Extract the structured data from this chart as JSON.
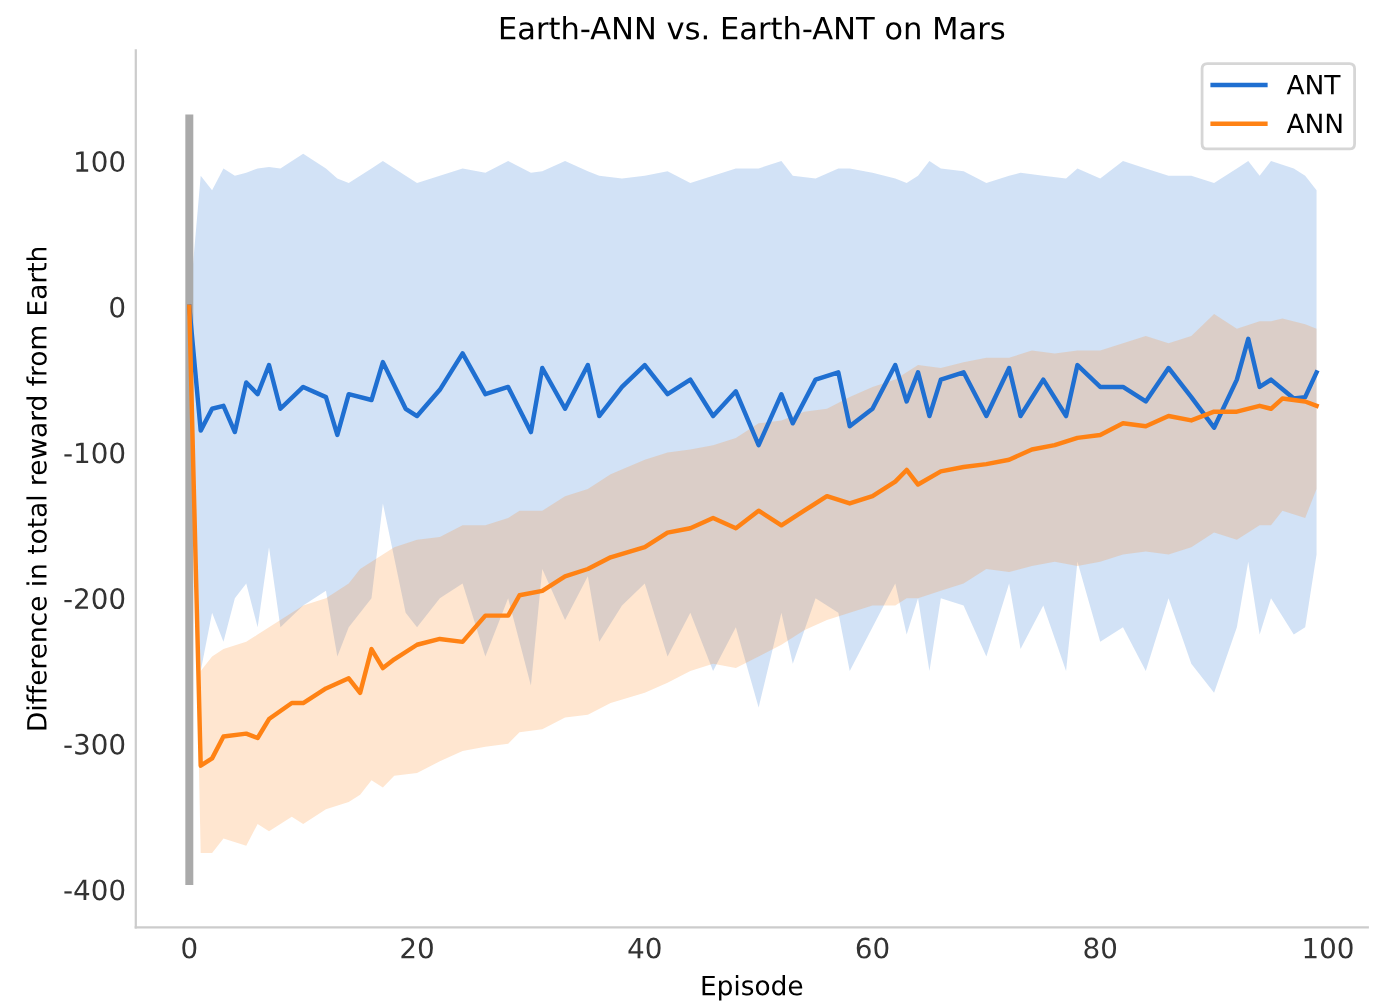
{
  "chart_data": {
    "type": "line",
    "title": "Earth-ANN vs. Earth-ANT on Mars",
    "xlabel": "Episode",
    "ylabel": "Difference in total reward from Earth",
    "xlim": [
      -4.7,
      103.5
    ],
    "ylim": [
      -426,
      176
    ],
    "xticks": [
      0,
      20,
      40,
      60,
      80,
      100
    ],
    "yticks": [
      -400,
      -300,
      -200,
      -100,
      0,
      100
    ],
    "legend": "top right",
    "line_style": "solid",
    "marker": "none",
    "series": [
      {
        "name": "ANT",
        "color": "#1f6fd1",
        "x": [
          0,
          1,
          2,
          3,
          4,
          5,
          6,
          7,
          8,
          10,
          12,
          13,
          14,
          16,
          17,
          19,
          20,
          22,
          24,
          26,
          28,
          30,
          31,
          33,
          35,
          36,
          38,
          40,
          42,
          44,
          46,
          48,
          50,
          52,
          53,
          55,
          57,
          58,
          60,
          62,
          63,
          64,
          65,
          66,
          68,
          70,
          72,
          73,
          75,
          77,
          78,
          80,
          82,
          84,
          86,
          88,
          90,
          92,
          93,
          94,
          95,
          97,
          98,
          99
        ],
        "values": [
          0,
          -85,
          -70,
          -68,
          -86,
          -52,
          -60,
          -40,
          -70,
          -55,
          -62,
          -88,
          -60,
          -64,
          -38,
          -70,
          -75,
          -57,
          -32,
          -60,
          -55,
          -86,
          -42,
          -70,
          -40,
          -75,
          -55,
          -40,
          -60,
          -50,
          -75,
          -58,
          -95,
          -60,
          -80,
          -50,
          -45,
          -82,
          -70,
          -40,
          -65,
          -45,
          -75,
          -50,
          -45,
          -75,
          -42,
          -75,
          -50,
          -75,
          -40,
          -55,
          -55,
          -65,
          -42,
          -62,
          -83,
          -50,
          -22,
          -55,
          -50,
          -63,
          -62,
          -45
        ],
        "lower": [
          0,
          -250,
          -210,
          -230,
          -200,
          -190,
          -220,
          -165,
          -220,
          -205,
          -195,
          -240,
          -220,
          -200,
          -135,
          -210,
          -220,
          -200,
          -190,
          -240,
          -200,
          -260,
          -180,
          -215,
          -185,
          -230,
          -205,
          -190,
          -240,
          -210,
          -250,
          -220,
          -275,
          -210,
          -245,
          -200,
          -210,
          -250,
          -220,
          -190,
          -225,
          -200,
          -250,
          -200,
          -205,
          -240,
          -190,
          -235,
          -205,
          -250,
          -175,
          -230,
          -220,
          -250,
          -200,
          -245,
          -265,
          -220,
          -175,
          -225,
          -200,
          -225,
          -220,
          -170
        ],
        "upper": [
          0,
          90,
          80,
          95,
          90,
          92,
          95,
          96,
          95,
          105,
          95,
          88,
          85,
          95,
          100,
          90,
          85,
          90,
          95,
          92,
          100,
          92,
          93,
          100,
          93,
          90,
          88,
          90,
          93,
          85,
          90,
          95,
          95,
          100,
          90,
          88,
          95,
          95,
          92,
          88,
          85,
          90,
          100,
          95,
          93,
          85,
          90,
          92,
          90,
          88,
          95,
          88,
          100,
          95,
          90,
          90,
          85,
          95,
          100,
          90,
          100,
          95,
          90,
          80
        ]
      },
      {
        "name": "ANN",
        "color": "#ff8214",
        "x": [
          0,
          1,
          2,
          3,
          5,
          6,
          7,
          9,
          10,
          12,
          14,
          15,
          16,
          17,
          18,
          20,
          22,
          24,
          26,
          28,
          29,
          31,
          33,
          35,
          37,
          40,
          42,
          44,
          46,
          48,
          50,
          52,
          54,
          56,
          58,
          60,
          62,
          63,
          64,
          66,
          68,
          70,
          72,
          74,
          76,
          78,
          80,
          82,
          84,
          86,
          88,
          90,
          92,
          94,
          95,
          96,
          98,
          99
        ],
        "values": [
          0,
          -315,
          -310,
          -295,
          -293,
          -296,
          -283,
          -272,
          -272,
          -262,
          -255,
          -265,
          -235,
          -248,
          -242,
          -232,
          -228,
          -230,
          -212,
          -212,
          -198,
          -195,
          -185,
          -180,
          -172,
          -165,
          -155,
          -152,
          -145,
          -152,
          -140,
          -150,
          -140,
          -130,
          -135,
          -130,
          -120,
          -112,
          -122,
          -113,
          -110,
          -108,
          -105,
          -98,
          -95,
          -90,
          -88,
          -80,
          -82,
          -75,
          -78,
          -72,
          -72,
          -68,
          -70,
          -63,
          -65,
          -68
        ],
        "lower": [
          0,
          -375,
          -375,
          -365,
          -370,
          -355,
          -360,
          -350,
          -355,
          -345,
          -340,
          -335,
          -325,
          -330,
          -322,
          -320,
          -312,
          -305,
          -302,
          -300,
          -292,
          -290,
          -282,
          -280,
          -272,
          -265,
          -258,
          -250,
          -245,
          -248,
          -240,
          -232,
          -222,
          -215,
          -210,
          -205,
          -205,
          -200,
          -200,
          -195,
          -190,
          -180,
          -182,
          -178,
          -175,
          -178,
          -175,
          -170,
          -168,
          -170,
          -165,
          -155,
          -160,
          -150,
          -150,
          -140,
          -145,
          -125
        ],
        "upper": [
          0,
          -250,
          -240,
          -235,
          -230,
          -225,
          -220,
          -210,
          -205,
          -200,
          -190,
          -180,
          -175,
          -170,
          -165,
          -160,
          -158,
          -150,
          -150,
          -145,
          -140,
          -140,
          -130,
          -125,
          -115,
          -105,
          -100,
          -98,
          -95,
          -90,
          -80,
          -78,
          -72,
          -70,
          -62,
          -55,
          -50,
          -45,
          -40,
          -42,
          -38,
          -35,
          -35,
          -30,
          -32,
          -30,
          -30,
          -25,
          -20,
          -25,
          -20,
          -5,
          -15,
          -10,
          -10,
          -8,
          -12,
          -15
        ]
      },
      {
        "type": "bar",
        "color": "#aaaaaa",
        "x": [
          0
        ],
        "base": [
          -397
        ],
        "values": [
          529
        ]
      }
    ]
  }
}
